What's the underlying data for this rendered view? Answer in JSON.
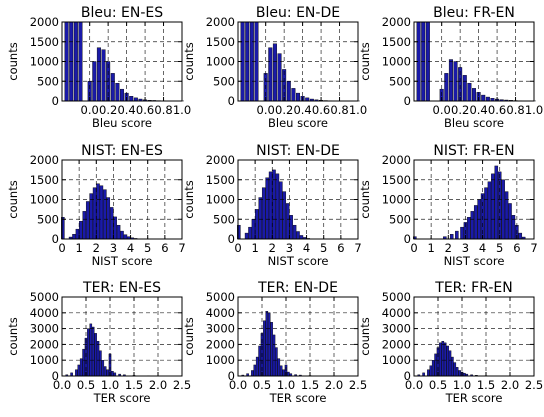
{
  "colors": {
    "bar_fill": "#1a1aa8",
    "bar_stroke": "#000000"
  },
  "chart_data": [
    {
      "type": "bar",
      "title": "Bleu: EN-ES",
      "xlabel": "Bleu score",
      "ylabel": "counts",
      "xlim": [
        -0.3,
        1.0
      ],
      "ylim": [
        0,
        2000
      ],
      "xticks": [
        0.0,
        0.2,
        0.4,
        0.6,
        0.8,
        1.0
      ],
      "xtick_labels": [
        "0.0",
        "0.2",
        "0.4",
        "0.6",
        "0.8",
        "1.0"
      ],
      "yticks": [
        0,
        500,
        1000,
        1500,
        2000
      ],
      "ytick_labels": [
        "0",
        "500",
        "1000",
        "1500",
        "2000"
      ],
      "grid": true,
      "categories": [
        -0.25,
        -0.2,
        -0.15,
        -0.1,
        0.0,
        0.05,
        0.1,
        0.15,
        0.2,
        0.25,
        0.3,
        0.35,
        0.4,
        0.45,
        0.5,
        0.55,
        0.6,
        0.65,
        0.7,
        0.75,
        0.8,
        0.85,
        0.9,
        0.95,
        1.0
      ],
      "values": [
        2000,
        2000,
        2000,
        2000,
        500,
        1000,
        1350,
        1300,
        1000,
        700,
        450,
        300,
        200,
        120,
        80,
        50,
        30,
        20,
        15,
        10,
        8,
        5,
        4,
        3,
        2
      ]
    },
    {
      "type": "bar",
      "title": "Bleu: EN-DE",
      "xlabel": "Bleu score",
      "ylabel": "counts",
      "xlim": [
        -0.3,
        1.0
      ],
      "ylim": [
        0,
        2000
      ],
      "xticks": [
        0.0,
        0.2,
        0.4,
        0.6,
        0.8,
        1.0
      ],
      "xtick_labels": [
        "0.0",
        "0.2",
        "0.4",
        "0.6",
        "0.8",
        "1.0"
      ],
      "yticks": [
        0,
        500,
        1000,
        1500,
        2000
      ],
      "ytick_labels": [
        "0",
        "500",
        "1000",
        "1500",
        "2000"
      ],
      "grid": true,
      "categories": [
        -0.25,
        -0.2,
        -0.15,
        -0.1,
        0.0,
        0.05,
        0.1,
        0.15,
        0.2,
        0.25,
        0.3,
        0.35,
        0.4,
        0.45,
        0.5,
        0.55,
        0.6,
        0.65,
        0.7,
        0.75,
        0.8,
        0.85,
        0.9,
        0.95,
        1.0
      ],
      "values": [
        2000,
        2000,
        2000,
        2000,
        700,
        1350,
        1450,
        1200,
        800,
        500,
        320,
        200,
        120,
        80,
        50,
        30,
        20,
        12,
        8,
        5,
        4,
        3,
        2,
        2,
        1
      ]
    },
    {
      "type": "bar",
      "title": "Bleu: FR-EN",
      "xlabel": "Bleu score",
      "ylabel": "counts",
      "xlim": [
        -0.3,
        1.0
      ],
      "ylim": [
        0,
        2000
      ],
      "xticks": [
        0.0,
        0.2,
        0.4,
        0.6,
        0.8,
        1.0
      ],
      "xtick_labels": [
        "0.0",
        "0.2",
        "0.4",
        "0.6",
        "0.8",
        "1.0"
      ],
      "yticks": [
        0,
        500,
        1000,
        1500,
        2000
      ],
      "ytick_labels": [
        "0",
        "500",
        "1000",
        "1500",
        "2000"
      ],
      "grid": true,
      "categories": [
        -0.25,
        -0.2,
        -0.15,
        0.0,
        0.05,
        0.1,
        0.15,
        0.2,
        0.25,
        0.3,
        0.35,
        0.4,
        0.45,
        0.5,
        0.55,
        0.6,
        0.65,
        0.7,
        0.75,
        0.8,
        0.85,
        0.9,
        0.95,
        1.0
      ],
      "values": [
        2000,
        2000,
        2000,
        300,
        700,
        1050,
        1000,
        850,
        650,
        450,
        320,
        220,
        150,
        100,
        70,
        50,
        35,
        25,
        18,
        12,
        8,
        5,
        3,
        2
      ]
    },
    {
      "type": "bar",
      "title": "NIST: EN-ES",
      "xlabel": "NIST score",
      "ylabel": "counts",
      "xlim": [
        0,
        7
      ],
      "ylim": [
        0,
        2000
      ],
      "xticks": [
        0,
        1,
        2,
        3,
        4,
        5,
        6,
        7
      ],
      "xtick_labels": [
        "0",
        "1",
        "2",
        "3",
        "4",
        "5",
        "6",
        "7"
      ],
      "yticks": [
        0,
        500,
        1000,
        1500,
        2000
      ],
      "ytick_labels": [
        "0",
        "500",
        "1000",
        "1500",
        "2000"
      ],
      "grid": true,
      "categories": [
        0.05,
        0.5,
        0.7,
        0.9,
        1.1,
        1.3,
        1.5,
        1.7,
        1.9,
        2.1,
        2.3,
        2.5,
        2.7,
        2.9,
        3.1,
        3.3,
        3.5,
        3.7,
        3.9,
        4.1,
        4.3,
        4.5
      ],
      "values": [
        550,
        50,
        120,
        250,
        450,
        700,
        950,
        1150,
        1300,
        1400,
        1350,
        1250,
        1050,
        800,
        560,
        350,
        200,
        110,
        60,
        30,
        15,
        5
      ]
    },
    {
      "type": "bar",
      "title": "NIST: EN-DE",
      "xlabel": "NIST score",
      "ylabel": "counts",
      "xlim": [
        0,
        7
      ],
      "ylim": [
        0,
        2000
      ],
      "xticks": [
        0,
        1,
        2,
        3,
        4,
        5,
        6,
        7
      ],
      "xtick_labels": [
        "0",
        "1",
        "2",
        "3",
        "4",
        "5",
        "6",
        "7"
      ],
      "yticks": [
        0,
        500,
        1000,
        1500,
        2000
      ],
      "ytick_labels": [
        "0",
        "500",
        "1000",
        "1500",
        "2000"
      ],
      "grid": true,
      "categories": [
        0.05,
        0.5,
        0.7,
        0.9,
        1.1,
        1.3,
        1.5,
        1.7,
        1.9,
        2.1,
        2.3,
        2.5,
        2.7,
        2.9,
        3.1,
        3.3,
        3.5,
        3.7,
        3.9,
        4.1
      ],
      "values": [
        350,
        150,
        300,
        500,
        750,
        1050,
        1300,
        1550,
        1700,
        1750,
        1650,
        1450,
        1200,
        900,
        600,
        350,
        190,
        90,
        40,
        15
      ]
    },
    {
      "type": "bar",
      "title": "NIST: FR-EN",
      "xlabel": "NIST score",
      "ylabel": "counts",
      "xlim": [
        0,
        7
      ],
      "ylim": [
        0,
        2000
      ],
      "xticks": [
        0,
        1,
        2,
        3,
        4,
        5,
        6,
        7
      ],
      "xtick_labels": [
        "0",
        "1",
        "2",
        "3",
        "4",
        "5",
        "6",
        "7"
      ],
      "yticks": [
        0,
        500,
        1000,
        1500,
        2000
      ],
      "ytick_labels": [
        "0",
        "500",
        "1000",
        "1500",
        "2000"
      ],
      "grid": true,
      "categories": [
        0.05,
        1.8,
        2.2,
        2.5,
        2.8,
        3.0,
        3.2,
        3.4,
        3.6,
        3.8,
        4.0,
        4.2,
        4.4,
        4.6,
        4.8,
        5.0,
        5.2,
        5.4,
        5.6,
        5.8,
        6.0,
        6.2,
        6.4
      ],
      "values": [
        60,
        60,
        120,
        200,
        300,
        420,
        550,
        700,
        850,
        1000,
        1150,
        1300,
        1450,
        1650,
        1850,
        1700,
        1500,
        1200,
        900,
        600,
        350,
        150,
        50
      ]
    },
    {
      "type": "bar",
      "title": "TER: EN-ES",
      "xlabel": "TER score",
      "ylabel": "counts",
      "xlim": [
        0,
        2.5
      ],
      "ylim": [
        0,
        5000
      ],
      "xticks": [
        0.0,
        0.5,
        1.0,
        1.5,
        2.0,
        2.5
      ],
      "xtick_labels": [
        "0.0",
        "0.5",
        "1.0",
        "1.5",
        "2.0",
        "2.5"
      ],
      "yticks": [
        0,
        1000,
        2000,
        3000,
        4000,
        5000
      ],
      "ytick_labels": [
        "0",
        "1000",
        "2000",
        "3000",
        "4000",
        "5000"
      ],
      "grid": true,
      "categories": [
        0.1,
        0.2,
        0.3,
        0.35,
        0.4,
        0.45,
        0.5,
        0.55,
        0.6,
        0.65,
        0.7,
        0.75,
        0.8,
        0.85,
        0.9,
        0.95,
        1.0,
        1.05,
        1.1,
        1.2,
        1.3,
        1.5,
        1.8,
        2.2
      ],
      "values": [
        80,
        200,
        400,
        700,
        1100,
        1700,
        2400,
        3000,
        3300,
        3100,
        2700,
        2200,
        1600,
        1000,
        600,
        400,
        1400,
        300,
        200,
        120,
        80,
        40,
        20,
        10
      ]
    },
    {
      "type": "bar",
      "title": "TER: EN-DE",
      "xlabel": "TER score",
      "ylabel": "counts",
      "xlim": [
        0,
        2.5
      ],
      "ylim": [
        0,
        5000
      ],
      "xticks": [
        0.0,
        0.5,
        1.0,
        1.5,
        2.0,
        2.5
      ],
      "xtick_labels": [
        "0.0",
        "0.5",
        "1.0",
        "1.5",
        "2.0",
        "2.5"
      ],
      "yticks": [
        0,
        1000,
        2000,
        3000,
        4000,
        5000
      ],
      "ytick_labels": [
        "0",
        "1000",
        "2000",
        "3000",
        "4000",
        "5000"
      ],
      "grid": true,
      "categories": [
        0.1,
        0.2,
        0.3,
        0.35,
        0.4,
        0.45,
        0.5,
        0.55,
        0.6,
        0.65,
        0.7,
        0.75,
        0.8,
        0.85,
        0.9,
        0.95,
        1.0,
        1.05,
        1.1,
        1.2,
        1.3,
        1.5,
        1.8,
        2.2
      ],
      "values": [
        60,
        150,
        350,
        700,
        1200,
        1900,
        2700,
        3500,
        4100,
        4000,
        3400,
        2600,
        1800,
        1100,
        650,
        400,
        700,
        250,
        150,
        90,
        60,
        30,
        15,
        8
      ]
    },
    {
      "type": "bar",
      "title": "TER: FR-EN",
      "xlabel": "TER score",
      "ylabel": "counts",
      "xlim": [
        0,
        2.5
      ],
      "ylim": [
        0,
        5000
      ],
      "xticks": [
        0.0,
        0.5,
        1.0,
        1.5,
        2.0,
        2.5
      ],
      "xtick_labels": [
        "0.0",
        "0.5",
        "1.0",
        "1.5",
        "2.0",
        "2.5"
      ],
      "yticks": [
        0,
        1000,
        2000,
        3000,
        4000,
        5000
      ],
      "ytick_labels": [
        "0",
        "1000",
        "2000",
        "3000",
        "4000",
        "5000"
      ],
      "grid": true,
      "categories": [
        0.1,
        0.2,
        0.3,
        0.35,
        0.4,
        0.45,
        0.5,
        0.55,
        0.6,
        0.65,
        0.7,
        0.75,
        0.8,
        0.85,
        0.9,
        0.95,
        1.0,
        1.05,
        1.1,
        1.2,
        1.3,
        1.5,
        1.8,
        2.2
      ],
      "values": [
        80,
        200,
        400,
        650,
        1000,
        1400,
        1800,
        2100,
        2200,
        2100,
        1900,
        1600,
        1200,
        850,
        550,
        350,
        250,
        180,
        120,
        80,
        50,
        25,
        12,
        6
      ]
    }
  ]
}
